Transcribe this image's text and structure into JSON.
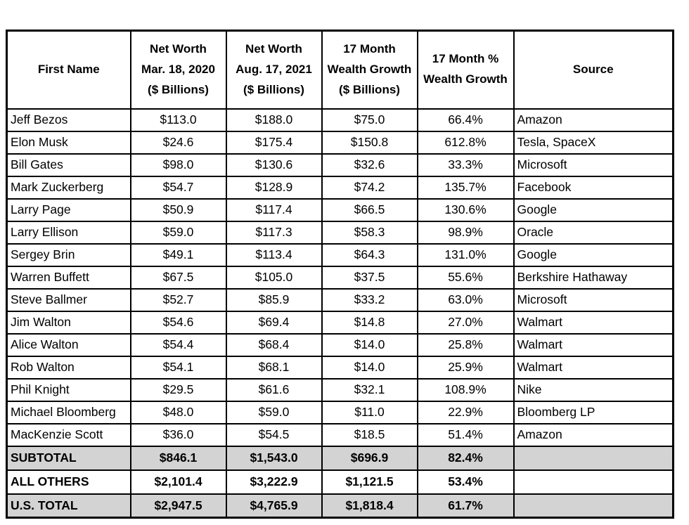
{
  "colors": {
    "background": "#ffffff",
    "border": "#000000",
    "text": "#000000",
    "summary_row_shading": "#d3d3d3"
  },
  "chart_data": {
    "type": "table",
    "title": "",
    "columns": [
      "First Name",
      "Net Worth\nMar. 18, 2020\n($ Billions)",
      "Net Worth\nAug. 17, 2021\n($ Billions)",
      "17 Month\nWealth Growth\n($ Billions)",
      "17 Month %\nWealth Growth",
      "Source"
    ],
    "rows": [
      [
        "Jeff Bezos",
        "$113.0",
        "$188.0",
        "$75.0",
        "66.4%",
        "Amazon"
      ],
      [
        "Elon Musk",
        "$24.6",
        "$175.4",
        "$150.8",
        "612.8%",
        "Tesla, SpaceX"
      ],
      [
        "Bill Gates",
        "$98.0",
        "$130.6",
        "$32.6",
        "33.3%",
        "Microsoft"
      ],
      [
        "Mark Zuckerberg",
        "$54.7",
        "$128.9",
        "$74.2",
        "135.7%",
        "Facebook"
      ],
      [
        "Larry Page",
        "$50.9",
        "$117.4",
        "$66.5",
        "130.6%",
        "Google"
      ],
      [
        "Larry Ellison",
        "$59.0",
        "$117.3",
        "$58.3",
        "98.9%",
        "Oracle"
      ],
      [
        "Sergey Brin",
        "$49.1",
        "$113.4",
        "$64.3",
        "131.0%",
        "Google"
      ],
      [
        "Warren Buffett",
        "$67.5",
        "$105.0",
        "$37.5",
        "55.6%",
        "Berkshire Hathaway"
      ],
      [
        "Steve Ballmer",
        "$52.7",
        "$85.9",
        "$33.2",
        "63.0%",
        "Microsoft"
      ],
      [
        "Jim Walton",
        "$54.6",
        "$69.4",
        "$14.8",
        "27.0%",
        "Walmart"
      ],
      [
        "Alice Walton",
        "$54.4",
        "$68.4",
        "$14.0",
        "25.8%",
        "Walmart"
      ],
      [
        "Rob Walton",
        "$54.1",
        "$68.1",
        "$14.0",
        "25.9%",
        "Walmart"
      ],
      [
        "Phil Knight",
        "$29.5",
        "$61.6",
        "$32.1",
        "108.9%",
        "Nike"
      ],
      [
        "Michael Bloomberg",
        "$48.0",
        "$59.0",
        "$11.0",
        "22.9%",
        "Bloomberg LP"
      ],
      [
        "MacKenzie Scott",
        "$36.0",
        "$54.5",
        "$18.5",
        "51.4%",
        "Amazon"
      ]
    ],
    "summary_rows": [
      [
        "SUBTOTAL",
        "$846.1",
        "$1,543.0",
        "$696.9",
        "82.4%",
        ""
      ],
      [
        "ALL OTHERS",
        "$2,101.4",
        "$3,222.9",
        "$1,121.5",
        "53.4%",
        ""
      ],
      [
        "U.S. TOTAL",
        "$2,947.5",
        "$4,765.9",
        "$1,818.4",
        "61.7%",
        ""
      ]
    ],
    "summary_shaded": [
      true,
      false,
      true
    ],
    "layout_hints": {
      "grid": "full black gridlines",
      "header_align": "center",
      "name_and_source_align": "left",
      "numeric_align": "center"
    }
  }
}
